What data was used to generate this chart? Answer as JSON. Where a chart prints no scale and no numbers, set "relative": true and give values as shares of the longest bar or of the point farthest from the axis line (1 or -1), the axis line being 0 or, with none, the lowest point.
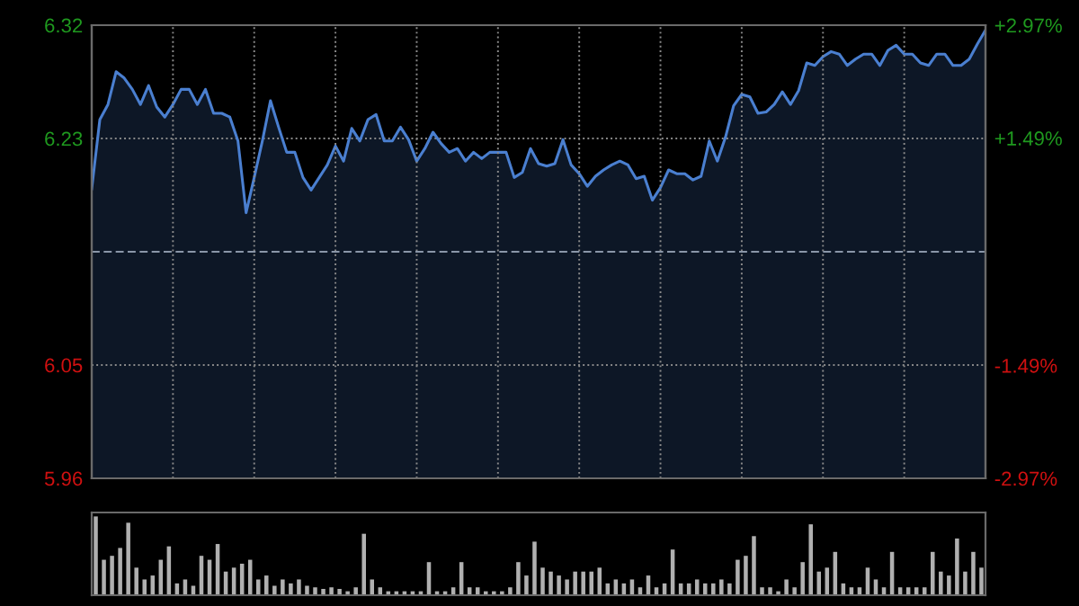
{
  "chart_data": [
    {
      "type": "area",
      "categories": [
        null,
        null,
        null,
        null,
        null,
        null,
        null,
        null,
        null,
        null,
        null,
        null,
        null,
        null,
        null,
        null,
        null,
        null,
        null,
        null,
        null,
        null,
        null,
        null,
        null,
        null,
        null,
        null,
        null,
        null,
        null,
        null,
        null,
        null,
        null,
        null,
        null,
        null,
        null,
        null,
        null,
        null,
        null,
        null,
        null,
        null,
        null,
        null,
        null,
        null,
        null,
        null,
        null,
        null,
        null,
        null,
        null,
        null,
        null,
        null,
        null,
        null,
        null,
        null,
        null,
        null,
        null,
        null,
        null,
        null,
        null,
        null,
        null,
        null,
        null,
        null,
        null,
        null,
        null,
        null,
        null,
        null,
        null,
        null,
        null,
        null,
        null,
        null,
        null,
        null,
        null,
        null,
        null,
        null,
        null,
        null,
        null,
        null,
        null,
        null,
        null,
        null,
        null,
        null,
        null,
        null,
        null,
        null,
        null,
        null,
        null
      ],
      "ylim": [
        5.96,
        6.32
      ],
      "yticks": [
        5.96,
        6.05,
        6.23,
        6.32
      ],
      "y2lim": [
        -2.97,
        2.97
      ],
      "y2ticks": [
        {
          "value": -2.97,
          "label": "-2.97%"
        },
        {
          "value": -1.49,
          "label": "-1.49%"
        },
        {
          "value": 1.49,
          "label": "+1.49%"
        },
        {
          "value": 2.97,
          "label": "+2.97%"
        }
      ],
      "grid": true,
      "tick_labels": "y",
      "marker": "none",
      "line_style": "solid",
      "ref_lines": [
        {
          "axis": "y",
          "value": 6.14,
          "label": null,
          "color": "#8a96a8",
          "line_style": "dashed"
        }
      ],
      "series": [
        {
          "color": "#4a7fd0",
          "values": [
            6.19,
            6.245,
            6.257,
            6.283,
            6.278,
            6.269,
            6.257,
            6.272,
            6.255,
            6.247,
            6.257,
            6.269,
            6.269,
            6.257,
            6.269,
            6.25,
            6.25,
            6.247,
            6.228,
            6.171,
            6.199,
            6.228,
            6.26,
            6.239,
            6.219,
            6.219,
            6.199,
            6.189,
            6.199,
            6.209,
            6.224,
            6.212,
            6.238,
            6.228,
            6.245,
            6.249,
            6.228,
            6.228,
            6.239,
            6.229,
            6.212,
            6.222,
            6.235,
            6.226,
            6.219,
            6.222,
            6.212,
            6.219,
            6.214,
            6.219,
            6.219,
            6.219,
            6.199,
            6.203,
            6.222,
            6.21,
            6.208,
            6.21,
            6.229,
            6.209,
            6.202,
            6.192,
            6.2,
            6.205,
            6.209,
            6.212,
            6.209,
            6.198,
            6.2,
            6.181,
            6.191,
            6.205,
            6.202,
            6.202,
            6.197,
            6.2,
            6.228,
            6.212,
            6.231,
            6.256,
            6.265,
            6.263,
            6.25,
            6.251,
            6.257,
            6.267,
            6.257,
            6.268,
            6.29,
            6.288,
            6.295,
            6.299,
            6.297,
            6.288,
            6.293,
            6.297,
            6.297,
            6.288,
            6.3,
            6.304,
            6.297,
            6.297,
            6.29,
            6.288,
            6.297,
            6.297,
            6.288,
            6.288,
            6.293,
            6.305,
            6.316
          ]
        }
      ]
    },
    {
      "type": "bar",
      "relative": true,
      "tick_labels": false,
      "color": "#b0b0b0",
      "categories": [
        null,
        null,
        null,
        null,
        null,
        null,
        null,
        null,
        null,
        null,
        null,
        null,
        null,
        null,
        null,
        null,
        null,
        null,
        null,
        null,
        null,
        null,
        null,
        null,
        null,
        null,
        null,
        null,
        null,
        null,
        null,
        null,
        null,
        null,
        null,
        null,
        null,
        null,
        null,
        null,
        null,
        null,
        null,
        null,
        null,
        null,
        null,
        null,
        null,
        null,
        null,
        null,
        null,
        null,
        null,
        null,
        null,
        null,
        null,
        null,
        null,
        null,
        null,
        null,
        null,
        null,
        null,
        null,
        null,
        null,
        null,
        null,
        null,
        null,
        null,
        null,
        null,
        null,
        null,
        null,
        null,
        null,
        null,
        null,
        null,
        null,
        null,
        null,
        null,
        null,
        null,
        null,
        null,
        null,
        null,
        null,
        null,
        null,
        null,
        null,
        null,
        null,
        null,
        null,
        null,
        null,
        null,
        null,
        null,
        null
      ],
      "values": [
        1.0,
        0.45,
        0.5,
        0.6,
        0.92,
        0.35,
        0.2,
        0.25,
        0.45,
        0.62,
        0.15,
        0.2,
        0.12,
        0.5,
        0.45,
        0.65,
        0.3,
        0.35,
        0.4,
        0.45,
        0.2,
        0.25,
        0.12,
        0.2,
        0.15,
        0.2,
        0.12,
        0.1,
        0.08,
        0.1,
        0.08,
        0.05,
        0.1,
        0.78,
        0.2,
        0.1,
        0.05,
        0.05,
        0.05,
        0.05,
        0.05,
        0.42,
        0.05,
        0.05,
        0.1,
        0.42,
        0.1,
        0.1,
        0.05,
        0.05,
        0.05,
        0.1,
        0.42,
        0.25,
        0.68,
        0.35,
        0.3,
        0.25,
        0.2,
        0.3,
        0.3,
        0.3,
        0.35,
        0.15,
        0.2,
        0.15,
        0.2,
        0.1,
        0.25,
        0.1,
        0.15,
        0.58,
        0.15,
        0.15,
        0.2,
        0.15,
        0.15,
        0.2,
        0.15,
        0.45,
        0.5,
        0.75,
        0.1,
        0.1,
        0.05,
        0.2,
        0.1,
        0.42,
        0.9,
        0.3,
        0.35,
        0.55,
        0.15,
        0.1,
        0.1,
        0.35,
        0.2,
        0.1,
        0.55,
        0.1,
        0.1,
        0.1,
        0.1,
        0.55,
        0.3,
        0.25,
        0.72,
        0.3,
        0.55,
        0.35
      ]
    }
  ]
}
